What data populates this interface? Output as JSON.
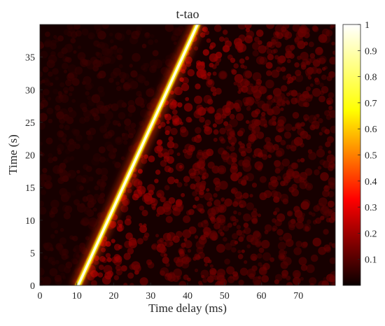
{
  "chart_data": {
    "type": "heatmap",
    "title": "t-tao",
    "xlabel": "Time delay (ms)",
    "ylabel": "Time (s)",
    "xlim": [
      0,
      80
    ],
    "ylim": [
      0,
      40
    ],
    "xticks": [
      0,
      10,
      20,
      30,
      40,
      50,
      60,
      70
    ],
    "yticks": [
      0,
      5,
      10,
      15,
      20,
      25,
      30,
      35
    ],
    "colorbar": {
      "range": [
        0,
        1
      ],
      "ticks": [
        0.1,
        0.2,
        0.3,
        0.4,
        0.5,
        0.6,
        0.7,
        0.8,
        0.9,
        1
      ],
      "tick_labels": [
        "0.1",
        "0.2",
        "0.3",
        "0.4",
        "0.5",
        "0.6",
        "0.7",
        "0.8",
        "0.9",
        "1"
      ],
      "colormap": "hot",
      "placement": "right"
    },
    "ridge": {
      "description_points": [
        {
          "delay_ms": 10,
          "time_s": 0,
          "intensity": 1
        },
        {
          "delay_ms": 43,
          "time_s": 40,
          "intensity": 1
        }
      ]
    },
    "background_level": 0.1,
    "grid": false
  },
  "colors": {
    "background": "#ffffff",
    "axes_text": "#262626",
    "frame": "#262626"
  }
}
